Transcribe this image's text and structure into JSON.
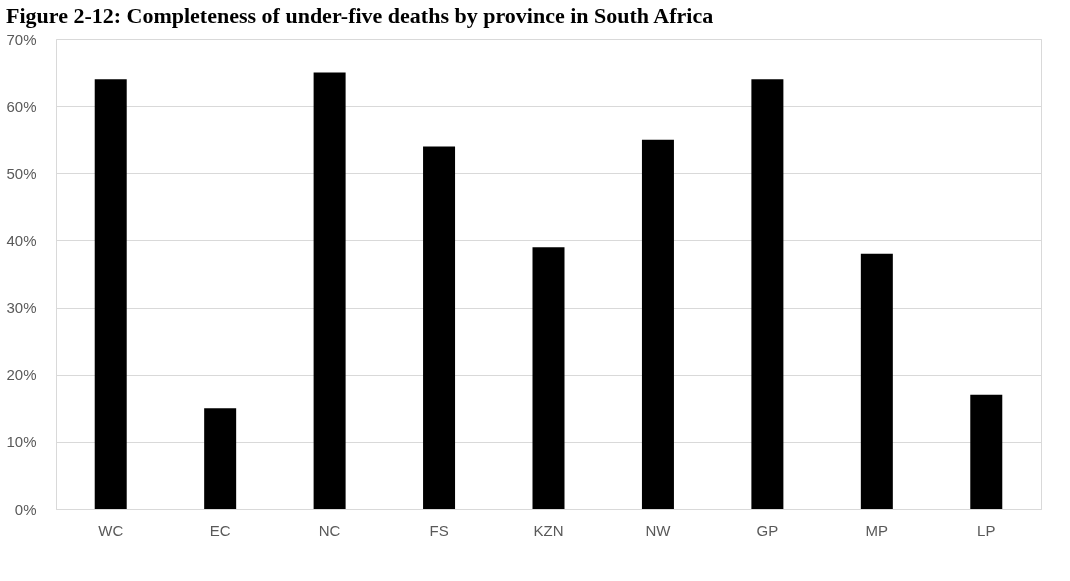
{
  "chart_data": {
    "type": "bar",
    "title": "Figure 2-12: Completeness of under-five deaths by province in South Africa",
    "categories": [
      "WC",
      "EC",
      "NC",
      "FS",
      "KZN",
      "NW",
      "GP",
      "MP",
      "LP"
    ],
    "values": [
      64,
      15,
      65,
      54,
      39,
      55,
      64,
      38,
      17
    ],
    "color": "#000000",
    "ylim": [
      0,
      70
    ],
    "yticks": [
      {
        "value": 0,
        "label": "0%"
      },
      {
        "value": 10,
        "label": "10%"
      },
      {
        "value": 20,
        "label": "20%"
      },
      {
        "value": 30,
        "label": "30%"
      },
      {
        "value": 40,
        "label": "40%"
      },
      {
        "value": 50,
        "label": "50%"
      },
      {
        "value": 60,
        "label": "60%"
      },
      {
        "value": 70,
        "label": "70%"
      }
    ],
    "grid": "y"
  }
}
